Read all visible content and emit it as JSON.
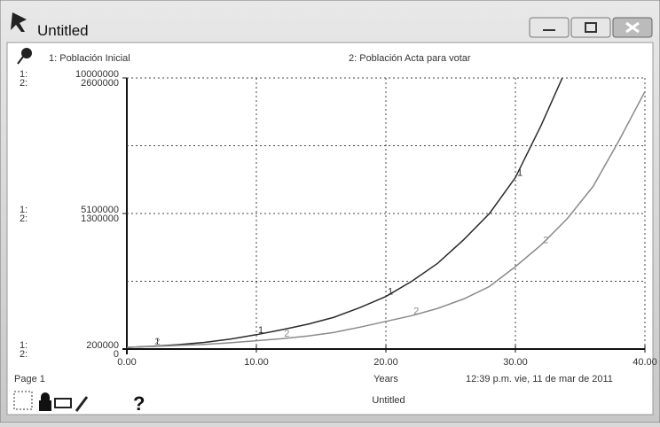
{
  "window": {
    "title": "Untitled"
  },
  "chart_data": {
    "type": "line",
    "x": [
      0,
      2,
      4,
      6,
      8,
      10,
      12,
      14,
      16,
      18,
      20,
      22,
      24,
      26,
      28,
      30,
      32,
      34,
      36,
      38,
      40
    ],
    "series": [
      {
        "name": "1: Población Inicial",
        "marker": "1",
        "color": "#2a2a2a",
        "values": [
          260000,
          300000,
          360000,
          440000,
          560000,
          720000,
          900000,
          1100000,
          1350000,
          1700000,
          2100000,
          2650000,
          3300000,
          4150000,
          5100000,
          6400000,
          8300000,
          10400000,
          null,
          null,
          null
        ]
      },
      {
        "name": "2: Población Acta para votar",
        "marker": "2",
        "color": "#8a8a8a",
        "axis": "y2",
        "values": [
          17000,
          25000,
          35000,
          45000,
          60000,
          80000,
          100000,
          125000,
          160000,
          210000,
          265000,
          320000,
          390000,
          480000,
          600000,
          790000,
          1000000,
          1250000,
          1560000,
          2000000,
          2470000
        ]
      }
    ],
    "y_axis_prefix": "1:",
    "y2_axis_prefix": "2:",
    "ylim": [
      200000,
      10000000
    ],
    "yticks": [
      200000,
      5100000,
      10000000
    ],
    "y2lim": [
      0,
      2600000
    ],
    "y2ticks": [
      0,
      1300000,
      2600000
    ],
    "xlim": [
      0,
      40
    ],
    "xticks": [
      {
        "value": 0,
        "label": "0.00"
      },
      {
        "value": 10,
        "label": "10.00"
      },
      {
        "value": 20,
        "label": "20.00"
      },
      {
        "value": 30,
        "label": "30.00"
      },
      {
        "value": 40,
        "label": "40.00"
      }
    ],
    "x_label": "Years",
    "grid": true
  },
  "footer": {
    "page": "Page 1",
    "timestamp": "12:39 p.m.   vie, 11 de mar de 2011",
    "page_name": "Untitled",
    "help": "?"
  }
}
